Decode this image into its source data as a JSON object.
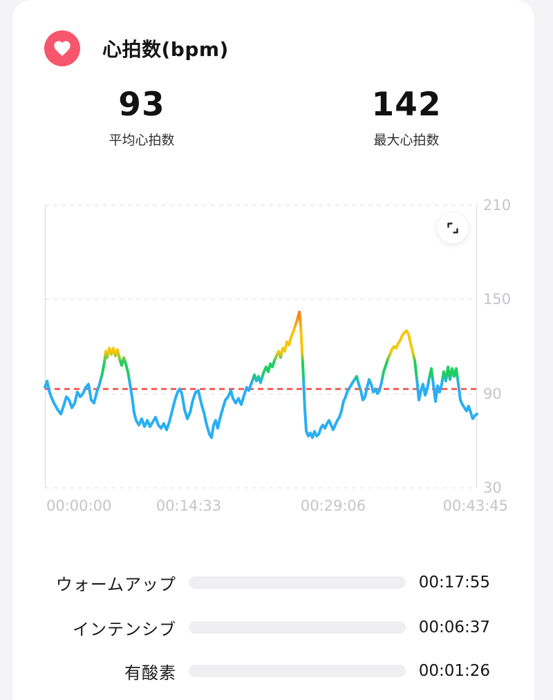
{
  "header": {
    "title": "心拍数(bpm)",
    "icon": "heart-icon"
  },
  "stats": {
    "average": {
      "value": "93",
      "label": "平均心拍数"
    },
    "max": {
      "value": "142",
      "label": "最大心拍数"
    }
  },
  "chart_data": {
    "type": "line",
    "title": "心拍数(bpm)",
    "ylabel": "bpm",
    "ylim": [
      30,
      210
    ],
    "y_ticks": [
      "210",
      "150",
      "90",
      "30"
    ],
    "x_ticks": [
      "00:00:00",
      "00:14:33",
      "00:29:06",
      "00:43:45"
    ],
    "xlim_seconds": [
      0,
      2625
    ],
    "grid": "dashed-horizontal",
    "reference_line": {
      "value": 93,
      "color": "#F8463E",
      "style": "dashed",
      "meaning": "average heart rate"
    },
    "zone_colors": {
      "blue": "#29AEF3",
      "green": "#1FCE61",
      "yellow": "#F5C60D",
      "orange": "#F8821C"
    },
    "series": [
      {
        "name": "heart_rate_bpm",
        "points": [
          [
            0,
            94
          ],
          [
            13,
            98
          ],
          [
            25,
            92
          ],
          [
            38,
            88
          ],
          [
            55,
            84
          ],
          [
            76,
            80
          ],
          [
            97,
            77
          ],
          [
            113,
            82
          ],
          [
            130,
            88
          ],
          [
            147,
            86
          ],
          [
            164,
            81
          ],
          [
            181,
            84
          ],
          [
            197,
            91
          ],
          [
            214,
            88
          ],
          [
            231,
            90
          ],
          [
            248,
            94
          ],
          [
            265,
            96
          ],
          [
            281,
            86
          ],
          [
            298,
            84
          ],
          [
            315,
            91
          ],
          [
            332,
            96
          ],
          [
            349,
            103
          ],
          [
            361,
            110
          ],
          [
            370,
            117
          ],
          [
            378,
            113
          ],
          [
            391,
            119
          ],
          [
            403,
            115
          ],
          [
            416,
            119
          ],
          [
            428,
            114
          ],
          [
            441,
            118
          ],
          [
            454,
            112
          ],
          [
            466,
            108
          ],
          [
            479,
            113
          ],
          [
            491,
            109
          ],
          [
            504,
            104
          ],
          [
            517,
            96
          ],
          [
            529,
            88
          ],
          [
            542,
            78
          ],
          [
            554,
            73
          ],
          [
            571,
            70
          ],
          [
            588,
            74
          ],
          [
            605,
            69
          ],
          [
            622,
            73
          ],
          [
            638,
            69
          ],
          [
            655,
            72
          ],
          [
            672,
            75
          ],
          [
            689,
            70
          ],
          [
            706,
            68
          ],
          [
            722,
            71
          ],
          [
            739,
            67
          ],
          [
            756,
            72
          ],
          [
            773,
            79
          ],
          [
            790,
            86
          ],
          [
            806,
            91
          ],
          [
            819,
            93
          ],
          [
            832,
            90
          ],
          [
            848,
            80
          ],
          [
            865,
            74
          ],
          [
            882,
            78
          ],
          [
            899,
            86
          ],
          [
            916,
            91
          ],
          [
            932,
            92
          ],
          [
            949,
            84
          ],
          [
            966,
            78
          ],
          [
            983,
            70
          ],
          [
            1000,
            64
          ],
          [
            1012,
            62
          ],
          [
            1025,
            70
          ],
          [
            1037,
            73
          ],
          [
            1050,
            68
          ],
          [
            1063,
            74
          ],
          [
            1079,
            80
          ],
          [
            1096,
            86
          ],
          [
            1113,
            88
          ],
          [
            1130,
            92
          ],
          [
            1142,
            87
          ],
          [
            1159,
            84
          ],
          [
            1176,
            87
          ],
          [
            1193,
            83
          ],
          [
            1210,
            89
          ],
          [
            1226,
            94
          ],
          [
            1239,
            92
          ],
          [
            1256,
            97
          ],
          [
            1273,
            102
          ],
          [
            1285,
            98
          ],
          [
            1298,
            101
          ],
          [
            1310,
            97
          ],
          [
            1327,
            103
          ],
          [
            1344,
            107
          ],
          [
            1357,
            104
          ],
          [
            1369,
            109
          ],
          [
            1382,
            107
          ],
          [
            1394,
            111
          ],
          [
            1407,
            114
          ],
          [
            1420,
            117
          ],
          [
            1432,
            113
          ],
          [
            1445,
            119
          ],
          [
            1457,
            117
          ],
          [
            1470,
            123
          ],
          [
            1483,
            121
          ],
          [
            1495,
            126
          ],
          [
            1508,
            129
          ],
          [
            1520,
            133
          ],
          [
            1533,
            137
          ],
          [
            1546,
            142
          ],
          [
            1554,
            133
          ],
          [
            1562,
            118
          ],
          [
            1571,
            100
          ],
          [
            1579,
            80
          ],
          [
            1588,
            66
          ],
          [
            1600,
            63
          ],
          [
            1613,
            65
          ],
          [
            1625,
            62
          ],
          [
            1638,
            66
          ],
          [
            1651,
            63
          ],
          [
            1663,
            64
          ],
          [
            1676,
            68
          ],
          [
            1688,
            70
          ],
          [
            1701,
            68
          ],
          [
            1714,
            71
          ],
          [
            1726,
            73
          ],
          [
            1739,
            70
          ],
          [
            1751,
            67
          ],
          [
            1764,
            70
          ],
          [
            1777,
            73
          ],
          [
            1789,
            75
          ],
          [
            1802,
            79
          ],
          [
            1814,
            85
          ],
          [
            1827,
            88
          ],
          [
            1840,
            92
          ],
          [
            1852,
            94
          ],
          [
            1869,
            97
          ],
          [
            1882,
            99
          ],
          [
            1894,
            101
          ],
          [
            1907,
            96
          ],
          [
            1919,
            92
          ],
          [
            1932,
            86
          ],
          [
            1945,
            88
          ],
          [
            1957,
            94
          ],
          [
            1970,
            99
          ],
          [
            1982,
            96
          ],
          [
            1995,
            91
          ],
          [
            2008,
            93
          ],
          [
            2020,
            90
          ],
          [
            2033,
            92
          ],
          [
            2045,
            97
          ],
          [
            2058,
            104
          ],
          [
            2071,
            108
          ],
          [
            2083,
            112
          ],
          [
            2096,
            115
          ],
          [
            2108,
            118
          ],
          [
            2121,
            120
          ],
          [
            2134,
            119
          ],
          [
            2146,
            122
          ],
          [
            2159,
            124
          ],
          [
            2171,
            127
          ],
          [
            2184,
            129
          ],
          [
            2197,
            130
          ],
          [
            2209,
            128
          ],
          [
            2222,
            122
          ],
          [
            2234,
            117
          ],
          [
            2247,
            111
          ],
          [
            2260,
            99
          ],
          [
            2272,
            86
          ],
          [
            2285,
            92
          ],
          [
            2297,
            96
          ],
          [
            2310,
            89
          ],
          [
            2323,
            93
          ],
          [
            2335,
            100
          ],
          [
            2348,
            106
          ],
          [
            2360,
            96
          ],
          [
            2373,
            85
          ],
          [
            2386,
            95
          ],
          [
            2398,
            91
          ],
          [
            2411,
            96
          ],
          [
            2423,
            104
          ],
          [
            2436,
            98
          ],
          [
            2449,
            107
          ],
          [
            2461,
            99
          ],
          [
            2474,
            106
          ],
          [
            2486,
            101
          ],
          [
            2499,
            106
          ],
          [
            2512,
            96
          ],
          [
            2524,
            86
          ],
          [
            2537,
            83
          ],
          [
            2549,
            81
          ],
          [
            2562,
            79
          ],
          [
            2574,
            82
          ],
          [
            2587,
            78
          ],
          [
            2599,
            74
          ],
          [
            2612,
            76
          ],
          [
            2625,
            77
          ]
        ]
      }
    ]
  },
  "zones": {
    "total_seconds": 2625,
    "rows": [
      {
        "label": "ウォームアップ",
        "duration": "00:17:55",
        "seconds": 1075,
        "color": "#1DB1F4"
      },
      {
        "label": "インテンシブ",
        "duration": "00:06:37",
        "seconds": 397,
        "color": "#1ED05F"
      },
      {
        "label": "有酸素",
        "duration": "00:01:26",
        "seconds": 86,
        "color": "#F7A800"
      }
    ]
  },
  "colors": {
    "page_bg": "#F4F4F6",
    "card_bg": "#FFFFFF",
    "heart_badge": "#F8566C",
    "axis_text": "#C5C5C9",
    "gridline": "#E9E9EB",
    "axis_border": "#E2E2E4",
    "track_bg": "#EFEFF1"
  }
}
